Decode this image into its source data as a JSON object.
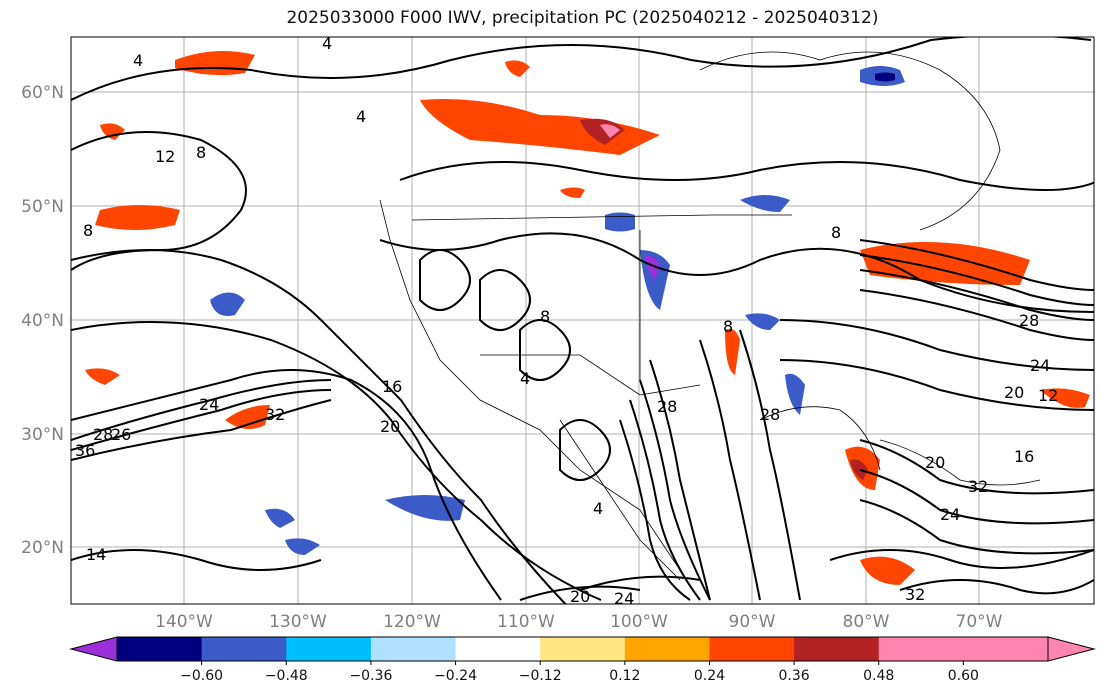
{
  "title": "2025033000 F000 IWV, precipitation PC (2025040212 - 2025040312)",
  "lat_labels": [
    "60°N",
    "50°N",
    "40°N",
    "30°N",
    "20°N"
  ],
  "lon_labels": [
    "140°W",
    "130°W",
    "120°W",
    "110°W",
    "100°W",
    "90°W",
    "80°W",
    "70°W"
  ],
  "colorbar": {
    "ticks": [
      "−0.60",
      "−0.48",
      "−0.36",
      "−0.24",
      "−0.12",
      "0.12",
      "0.24",
      "0.36",
      "0.48",
      "0.60"
    ],
    "colors": [
      "#9b30d9",
      "#00007f",
      "#3a5bc8",
      "#00bfff",
      "#b0e0ff",
      "#ffffff",
      "#ffe680",
      "#ffa500",
      "#ff4500",
      "#b22222",
      "#ff85b0",
      "#ff85b0"
    ]
  },
  "contour_labels": [
    "4",
    "4",
    "12",
    "8",
    "4",
    "8",
    "8",
    "28",
    "24",
    "12",
    "16",
    "20",
    "8",
    "8",
    "4",
    "28",
    "26",
    "20",
    "16",
    "20",
    "24",
    "28",
    "32",
    "36",
    "28",
    "4",
    "32",
    "24",
    "14",
    "20",
    "24",
    "32"
  ]
}
